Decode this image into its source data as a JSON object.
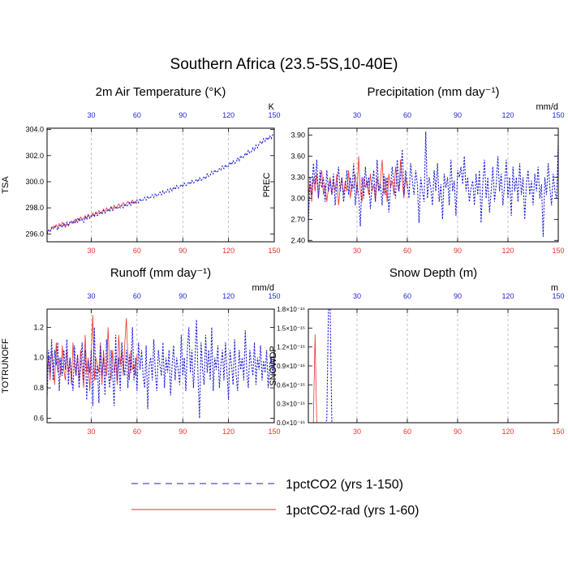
{
  "title": "Southern Africa (23.5-5S,10-40E)",
  "legend": [
    {
      "label": "1pctCO2 (yrs 1-150)",
      "color": "#1f1fd6",
      "dash": "8 6"
    },
    {
      "label": "1pctCO2-rad (yrs 1-60)",
      "color": "#e8332e",
      "dash": ""
    }
  ],
  "chart_data": [
    {
      "type": "line",
      "title": "2m Air Temperature (°K)",
      "ylabel": "TSA",
      "unit": "K",
      "xlim": [
        1,
        150
      ],
      "ylim": [
        295.4,
        304.1
      ],
      "yticks": [
        296.0,
        298.0,
        300.0,
        302.0,
        304.0
      ],
      "ytick_labels": [
        "296.0",
        "298.0",
        "300.0",
        "302.0",
        "304.0"
      ],
      "xticks": [
        30,
        60,
        90,
        120,
        150
      ],
      "series": [
        {
          "name": "1pctCO2 (yrs 1-150)",
          "color": "#1f1fd6",
          "x_start": 1,
          "values": [
            296.0,
            296.3,
            296.2,
            296.5,
            296.4,
            296.6,
            296.5,
            296.3,
            296.6,
            296.7,
            296.5,
            296.8,
            296.6,
            296.9,
            296.7,
            296.9,
            296.8,
            297.0,
            296.8,
            297.1,
            296.9,
            297.2,
            297.0,
            297.1,
            296.9,
            297.3,
            297.1,
            297.4,
            297.2,
            297.3,
            297.5,
            297.3,
            297.6,
            297.4,
            297.5,
            297.7,
            297.5,
            297.8,
            297.6,
            297.7,
            297.9,
            297.7,
            298.0,
            297.8,
            297.9,
            298.1,
            297.9,
            298.1,
            298.0,
            298.2,
            298.0,
            298.3,
            298.1,
            298.2,
            298.4,
            298.2,
            298.5,
            298.3,
            298.4,
            298.6,
            298.4,
            298.7,
            298.5,
            298.6,
            298.8,
            298.6,
            298.9,
            298.7,
            298.8,
            299.0,
            298.8,
            299.1,
            298.9,
            299.0,
            299.2,
            299.0,
            299.3,
            299.1,
            299.2,
            299.4,
            299.2,
            299.5,
            299.3,
            299.6,
            299.4,
            299.7,
            299.5,
            299.6,
            299.8,
            299.6,
            299.9,
            299.7,
            299.8,
            300.0,
            299.8,
            300.1,
            299.9,
            300.0,
            300.2,
            300.0,
            300.3,
            300.1,
            300.2,
            300.4,
            300.2,
            300.6,
            300.4,
            300.5,
            300.8,
            300.6,
            300.9,
            300.7,
            300.8,
            301.0,
            300.9,
            301.2,
            301.0,
            301.3,
            301.1,
            301.2,
            301.5,
            301.3,
            301.6,
            301.4,
            301.5,
            301.8,
            301.6,
            302.0,
            301.8,
            301.9,
            302.2,
            302.0,
            302.4,
            302.2,
            302.3,
            302.6,
            302.4,
            302.8,
            302.6,
            302.9,
            303.1,
            302.9,
            303.3,
            303.1,
            303.4,
            303.2,
            303.5,
            303.3,
            303.6,
            303.5
          ]
        },
        {
          "name": "1pctCO2-rad (yrs 1-60)",
          "color": "#e8332e",
          "x_start": 1,
          "values": [
            296.1,
            296.3,
            296.2,
            296.4,
            296.6,
            296.5,
            296.7,
            296.5,
            296.8,
            296.6,
            296.9,
            296.7,
            296.5,
            296.8,
            296.6,
            296.9,
            297.0,
            296.8,
            297.1,
            296.9,
            297.2,
            297.0,
            297.3,
            297.1,
            297.2,
            297.4,
            297.2,
            297.5,
            297.3,
            297.4,
            297.6,
            297.4,
            297.7,
            297.5,
            297.8,
            297.6,
            297.7,
            297.9,
            297.7,
            298.0,
            297.8,
            297.9,
            298.1,
            297.9,
            298.2,
            298.0,
            298.1,
            298.3,
            298.1,
            298.2,
            298.4,
            298.2,
            298.3,
            298.5,
            298.3,
            298.4,
            298.6,
            298.4,
            298.5,
            298.3
          ]
        }
      ]
    },
    {
      "type": "line",
      "title": "Precipitation (mm day⁻¹)",
      "ylabel": "PREC",
      "unit": "mm/d",
      "xlim": [
        1,
        150
      ],
      "ylim": [
        2.38,
        4.0
      ],
      "yticks": [
        2.4,
        2.7,
        3.0,
        3.3,
        3.6,
        3.9
      ],
      "ytick_labels": [
        "2.40",
        "2.70",
        "3.00",
        "3.30",
        "3.60",
        "3.90"
      ],
      "xticks": [
        30,
        60,
        90,
        120,
        150
      ],
      "series": [
        {
          "name": "1pctCO2 (yrs 1-150)",
          "color": "#1f1fd6",
          "x_start": 1,
          "values": [
            2.65,
            3.3,
            3.05,
            3.5,
            3.2,
            3.55,
            3.0,
            3.4,
            3.15,
            3.3,
            2.95,
            3.4,
            3.1,
            3.25,
            3.05,
            3.35,
            2.9,
            3.2,
            3.45,
            3.1,
            3.3,
            2.95,
            3.15,
            3.4,
            3.05,
            3.3,
            3.1,
            3.5,
            2.9,
            3.2,
            3.05,
            2.6,
            3.3,
            3.0,
            3.45,
            3.15,
            3.3,
            2.85,
            3.2,
            3.4,
            2.95,
            3.55,
            3.1,
            3.2,
            2.9,
            3.35,
            3.05,
            3.3,
            2.8,
            3.15,
            3.45,
            3.2,
            3.0,
            3.55,
            3.1,
            3.3,
            3.7,
            3.05,
            3.4,
            3.2,
            3.0,
            3.5,
            3.25,
            3.05,
            3.4,
            3.2,
            2.65,
            3.3,
            3.1,
            2.95,
            3.95,
            3.0,
            3.3,
            3.15,
            2.9,
            3.4,
            3.1,
            3.5,
            2.95,
            3.2,
            2.7,
            3.35,
            3.15,
            3.3,
            2.9,
            3.55,
            3.1,
            3.25,
            2.75,
            3.4,
            3.3,
            3.45,
            3.2,
            3.6,
            3.1,
            3.3,
            2.95,
            3.15,
            3.25,
            2.9,
            3.35,
            3.05,
            3.4,
            2.65,
            3.2,
            3.55,
            3.0,
            3.3,
            2.8,
            3.1,
            3.45,
            2.95,
            3.2,
            3.6,
            3.1,
            3.35,
            2.9,
            3.2,
            3.55,
            3.0,
            3.3,
            2.75,
            3.45,
            3.1,
            3.3,
            2.95,
            3.5,
            3.05,
            3.3,
            2.7,
            3.2,
            3.4,
            3.05,
            3.25,
            2.9,
            3.35,
            3.1,
            3.45,
            3.0,
            3.2,
            2.45,
            3.3,
            3.05,
            3.5,
            3.15,
            2.9,
            3.35,
            3.1,
            3.0,
            3.8
          ]
        },
        {
          "name": "1pctCO2-rad (yrs 1-60)",
          "color": "#e8332e",
          "x_start": 1,
          "values": [
            3.05,
            3.2,
            2.95,
            3.3,
            3.1,
            3.35,
            3.0,
            3.25,
            3.4,
            3.05,
            3.2,
            2.95,
            3.15,
            3.3,
            3.05,
            3.25,
            3.1,
            3.35,
            2.9,
            3.15,
            3.3,
            3.05,
            3.25,
            3.1,
            3.4,
            3.0,
            3.2,
            3.15,
            3.35,
            3.05,
            3.6,
            3.1,
            2.95,
            3.3,
            3.15,
            3.25,
            3.05,
            3.35,
            3.1,
            3.2,
            2.95,
            3.3,
            3.1,
            3.25,
            3.55,
            3.05,
            3.3,
            2.95,
            3.35,
            3.15,
            3.25,
            3.05,
            3.45,
            3.2,
            3.1,
            3.55,
            3.25,
            3.0,
            3.3,
            3.15
          ]
        }
      ]
    },
    {
      "type": "line",
      "title": "Runoff (mm day⁻¹)",
      "ylabel": "TOTRUNOFF",
      "unit": "mm/d",
      "xlim": [
        1,
        150
      ],
      "ylim": [
        0.57,
        1.32
      ],
      "yticks": [
        0.6,
        0.8,
        1.0,
        1.2
      ],
      "ytick_labels": [
        "0.6",
        "0.8",
        "1.0",
        "1.2"
      ],
      "xticks": [
        30,
        60,
        90,
        120,
        150
      ],
      "series": [
        {
          "name": "1pctCO2 (yrs 1-150)",
          "color": "#1f1fd6",
          "x_start": 1,
          "values": [
            0.74,
            1.05,
            0.9,
            1.12,
            0.85,
            1.05,
            0.95,
            1.1,
            0.78,
            1.0,
            0.88,
            1.05,
            0.92,
            1.12,
            0.82,
            1.0,
            0.9,
            0.78,
            1.08,
            0.88,
            1.02,
            0.8,
            0.95,
            1.1,
            0.85,
            1.05,
            0.72,
            0.98,
            0.9,
            1.05,
            0.68,
            1.2,
            0.85,
            0.95,
            0.7,
            1.08,
            0.88,
            1.0,
            0.75,
            1.12,
            0.92,
            0.8,
            1.05,
            0.9,
            0.68,
            1.15,
            0.85,
            1.0,
            0.78,
            1.1,
            0.95,
            0.88,
            1.05,
            0.8,
            1.02,
            0.9,
            1.2,
            0.85,
            1.0,
            0.78,
            1.1,
            0.92,
            1.05,
            0.88,
            0.8,
            1.08,
            0.66,
            0.95,
            1.0,
            0.85,
            1.12,
            0.9,
            0.78,
            1.05,
            0.95,
            0.88,
            1.1,
            0.8,
            1.0,
            0.9,
            1.05,
            0.75,
            0.95,
            1.08,
            0.85,
            1.0,
            0.92,
            0.82,
            1.15,
            0.88,
            1.0,
            0.78,
            1.05,
            1.2,
            0.9,
            1.05,
            0.8,
            0.98,
            1.25,
            0.88,
            0.6,
            1.1,
            0.92,
            0.82,
            1.15,
            0.9,
            1.05,
            0.85,
            1.2,
            0.78,
            1.0,
            0.92,
            1.08,
            0.8,
            0.95,
            1.05,
            0.85,
            1.1,
            0.9,
            0.72,
            1.05,
            0.95,
            0.82,
            1.12,
            0.88,
            0.78,
            1.05,
            0.92,
            1.0,
            0.85,
            1.18,
            0.9,
            0.8,
            1.05,
            0.95,
            0.88,
            1.1,
            0.82,
            1.0,
            0.92,
            1.08,
            0.85,
            0.98,
            0.9,
            1.05,
            0.8,
            0.95,
            1.0,
            0.88,
            1.05
          ]
        },
        {
          "name": "1pctCO2-rad (yrs 1-60)",
          "color": "#e8332e",
          "x_start": 1,
          "values": [
            0.9,
            1.0,
            0.85,
            1.05,
            0.95,
            0.82,
            1.1,
            0.9,
            1.0,
            0.88,
            1.08,
            0.92,
            0.85,
            1.05,
            0.9,
            1.0,
            0.82,
            1.1,
            0.95,
            0.88,
            1.02,
            0.85,
            1.05,
            0.92,
            0.8,
            1.15,
            0.9,
            1.0,
            0.78,
            1.05,
            1.28,
            0.85,
            1.0,
            0.95,
            0.9,
            1.1,
            0.82,
            1.05,
            0.92,
            0.88,
            1.2,
            0.95,
            0.85,
            1.05,
            0.9,
            1.0,
            0.82,
            1.15,
            0.95,
            1.05,
            0.88,
            1.1,
            1.26,
            1.0,
            0.85,
            1.05,
            0.92,
            0.95,
            0.88,
            1.02
          ]
        }
      ]
    },
    {
      "type": "line",
      "title": "Snow Depth (m)",
      "ylabel": "SNOWDP",
      "unit": "m",
      "xlim": [
        1,
        150
      ],
      "ylim": [
        0,
        1.8e-16
      ],
      "yticks": [
        0,
        3e-17,
        6e-17,
        9e-17,
        1.2e-16,
        1.5e-16,
        1.8e-16
      ],
      "ytick_labels": [
        "0.0×10⁻¹⁶",
        "0.3×10⁻¹⁶",
        "0.6×10⁻¹⁶",
        "0.9×10⁻¹⁶",
        "1.2×10⁻¹⁶",
        "1.5×10⁻¹⁶",
        "1.8×10⁻¹⁶"
      ],
      "xticks": [
        30,
        60,
        90,
        120,
        150
      ],
      "series": [
        {
          "name": "1pctCO2 (yrs 1-150)",
          "color": "#1f1fd6",
          "x_start": 1,
          "values": [
            0,
            0,
            0,
            0,
            0,
            0,
            0,
            0,
            0,
            0,
            0,
            4e-18,
            1.8e-16,
            1.8e-16,
            0,
            0,
            0,
            0,
            0,
            0,
            0,
            0,
            0,
            0,
            0,
            0,
            0,
            0,
            0,
            0,
            0,
            0,
            0,
            0,
            0,
            0,
            0,
            0,
            0,
            0,
            0,
            0,
            0,
            0,
            0,
            0,
            0,
            0,
            0,
            0,
            0,
            0,
            0,
            0,
            0,
            0,
            0,
            0,
            0,
            0,
            0,
            0,
            0,
            0,
            0,
            0,
            0,
            0,
            0,
            0,
            0,
            0,
            0,
            0,
            0,
            0,
            0,
            0,
            0,
            0,
            0,
            0,
            0,
            0,
            0,
            0,
            0,
            0,
            0,
            0,
            0,
            0,
            0,
            0,
            0,
            0,
            0,
            0,
            0,
            0,
            0,
            0,
            0,
            0,
            0,
            0,
            0,
            0,
            0,
            0,
            0,
            0,
            0,
            0,
            0,
            0,
            0,
            0,
            0,
            0,
            0,
            0,
            0,
            0,
            0,
            0,
            0,
            0,
            0,
            0,
            0,
            0,
            0,
            0,
            0,
            0,
            0,
            0,
            0,
            0,
            0,
            0,
            0,
            0,
            0,
            0,
            0,
            0,
            0,
            0
          ]
        },
        {
          "name": "1pctCO2-rad (yrs 1-60)",
          "color": "#e8332e",
          "x_start": 1,
          "values": [
            0,
            0,
            0,
            0,
            1.4e-16,
            0,
            0,
            0,
            0,
            0,
            0,
            0,
            0,
            0,
            0,
            0,
            0,
            0,
            0,
            0,
            0,
            0,
            0,
            0,
            0,
            0,
            0,
            0,
            0,
            0,
            0,
            0,
            0,
            0,
            0,
            0,
            0,
            0,
            0,
            0,
            0,
            0,
            0,
            0,
            0,
            0,
            0,
            0,
            0,
            0,
            0,
            0,
            0,
            0,
            0,
            0,
            0,
            0,
            0,
            0
          ]
        }
      ]
    }
  ]
}
